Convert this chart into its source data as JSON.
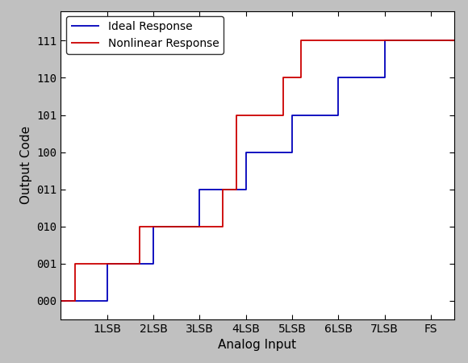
{
  "xlabel": "Analog Input",
  "ylabel": "Output Code",
  "background_color": "#c0c0c0",
  "plot_bg_color": "#ffffff",
  "x_ticks": [
    1,
    2,
    3,
    4,
    5,
    6,
    7,
    8
  ],
  "x_tick_labels": [
    "1LSB",
    "2LSB",
    "3LSB",
    "4LSB",
    "5LSB",
    "6LSB",
    "7LSB",
    "FS"
  ],
  "y_ticks": [
    0,
    1,
    2,
    3,
    4,
    5,
    6,
    7
  ],
  "y_tick_labels": [
    "000",
    "001",
    "010",
    "011",
    "100",
    "101",
    "110",
    "111"
  ],
  "xlim": [
    0,
    8.5
  ],
  "ylim": [
    -0.5,
    7.8
  ],
  "ideal_x": [
    0,
    1,
    1,
    2,
    2,
    3,
    3,
    4,
    4,
    5,
    5,
    6,
    6,
    7,
    7,
    8.5
  ],
  "ideal_y": [
    0,
    0,
    1,
    1,
    2,
    2,
    3,
    3,
    4,
    4,
    5,
    5,
    6,
    6,
    7,
    7
  ],
  "nonideal_x": [
    0,
    0.3,
    0.3,
    1.7,
    1.7,
    3.5,
    3.5,
    3.8,
    3.8,
    4.8,
    4.8,
    5.2,
    5.2,
    6.7,
    6.7,
    8.5
  ],
  "nonideal_y": [
    0,
    0,
    1,
    1,
    2,
    2,
    3,
    3,
    5,
    5,
    6,
    6,
    7,
    7,
    7,
    7
  ],
  "ideal_color": "#0000bb",
  "nonideal_color": "#cc0000",
  "ideal_label": "Ideal Response",
  "nonideal_label": "Nonlinear Response",
  "line_width": 1.3,
  "tick_fontsize": 10,
  "label_fontsize": 11,
  "legend_fontsize": 10
}
